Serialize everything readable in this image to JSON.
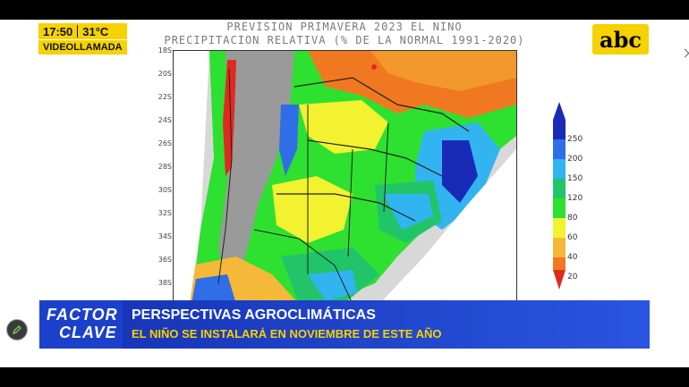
{
  "map": {
    "title_line1": "PREVISION PRIMAVERA 2023 EL NINO",
    "title_line2": "PRECIPITACION RELATIVA (% DE LA NORMAL 1991-2020)",
    "latitudes": [
      "18S",
      "20S",
      "22S",
      "24S",
      "26S",
      "28S",
      "30S",
      "32S",
      "34S",
      "36S",
      "38S"
    ],
    "legend": [
      "250",
      "200",
      "150",
      "120",
      "80",
      "60",
      "40",
      "20"
    ],
    "legend_colors": [
      "#1a2ab8",
      "#2f6ee6",
      "#32b4f0",
      "#22c46a",
      "#2ee030",
      "#f2f230",
      "#f5b838",
      "#f07820",
      "#e02a20"
    ]
  },
  "badge": {
    "time": "17:50",
    "temp": "31°C",
    "label": "VIDEOLLAMADA"
  },
  "logo": {
    "text": "abc",
    "color": "#f5d200"
  },
  "lower_third": {
    "brand_line1": "FACTOR",
    "brand_line2": "CLAVE",
    "headline": "PERSPECTIVAS AGROCLIMÁTICAS",
    "subheadline": "EL NIÑO SE INSTALARÁ EN NOVIEMBRE DE ESTE AÑO",
    "accent": "#1b40c9"
  },
  "icons": {
    "pen": "pen-icon",
    "side": "chevron-right-icon"
  }
}
